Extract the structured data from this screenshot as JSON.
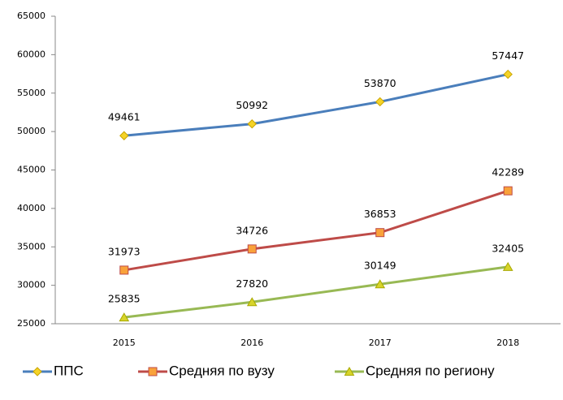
{
  "chart_data": {
    "type": "line",
    "categories": [
      "2015",
      "2016",
      "2017",
      "2018"
    ],
    "series": [
      {
        "name": "ППС",
        "color": "#4a7ebb",
        "marker_color": "#f5d327",
        "values": [
          49461,
          50992,
          53870,
          57447
        ]
      },
      {
        "name": "Средняя по вузу",
        "color": "#be4b48",
        "marker_color": "#f9a23a",
        "values": [
          31973,
          34726,
          36853,
          42289
        ]
      },
      {
        "name": "Средняя по региону",
        "color": "#98b954",
        "marker_color": "#d7d42a",
        "values": [
          25835,
          27820,
          30149,
          32405
        ]
      }
    ],
    "ylim": [
      25000,
      65000
    ],
    "yticks": [
      25000,
      30000,
      35000,
      40000,
      45000,
      50000,
      55000,
      60000,
      65000
    ],
    "grid": false,
    "legend": "bottom"
  }
}
